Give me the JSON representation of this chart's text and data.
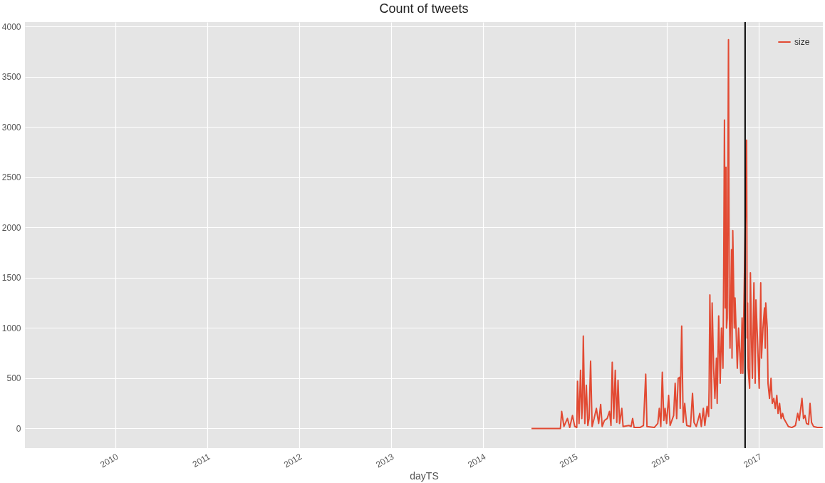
{
  "chart_data": {
    "type": "line",
    "title": "Count of tweets",
    "xlabel": "dayTS",
    "xlim": [
      "2009-01-07",
      "2017-09-13"
    ],
    "xticks": [
      "2010",
      "2011",
      "2012",
      "2013",
      "2014",
      "2015",
      "2016",
      "2017"
    ],
    "ylim": [
      -195,
      4045
    ],
    "yticks": [
      0,
      500,
      1000,
      1500,
      2000,
      2500,
      3000,
      3500,
      4000
    ],
    "grid": true,
    "legend": "top right",
    "ref_lines": [
      {
        "axis": "x",
        "value": "2016-11-08",
        "color": "#000000"
      }
    ],
    "x": [
      "2014-07-13",
      "2014-11-05",
      "2014-11-10",
      "2014-11-19",
      "2014-12-03",
      "2014-12-12",
      "2014-12-23",
      "2015-01-01",
      "2015-01-09",
      "2015-01-12",
      "2015-01-18",
      "2015-01-24",
      "2015-01-29",
      "2015-02-01",
      "2015-02-04",
      "2015-02-10",
      "2015-02-16",
      "2015-02-22",
      "2015-02-27",
      "2015-03-05",
      "2015-03-11",
      "2015-03-19",
      "2015-03-28",
      "2015-04-06",
      "2015-04-14",
      "2015-04-20",
      "2015-04-29",
      "2015-05-10",
      "2015-05-19",
      "2015-05-25",
      "2015-05-30",
      "2015-06-05",
      "2015-06-11",
      "2015-06-17",
      "2015-06-22",
      "2015-06-28",
      "2015-07-07",
      "2015-07-12",
      "2015-08-04",
      "2015-08-13",
      "2015-08-19",
      "2015-08-25",
      "2015-09-17",
      "2015-10-01",
      "2015-10-10",
      "2015-10-15",
      "2015-11-13",
      "2015-11-27",
      "2015-12-03",
      "2015-12-09",
      "2015-12-15",
      "2015-12-21",
      "2015-12-26",
      "2016-01-01",
      "2016-01-09",
      "2016-01-15",
      "2016-01-29",
      "2016-02-04",
      "2016-02-10",
      "2016-02-16",
      "2016-02-22",
      "2016-02-24",
      "2016-03-01",
      "2016-03-07",
      "2016-03-13",
      "2016-03-21",
      "2016-04-05",
      "2016-04-13",
      "2016-04-19",
      "2016-04-28",
      "2016-05-12",
      "2016-05-18",
      "2016-05-26",
      "2016-06-01",
      "2016-06-10",
      "2016-06-16",
      "2016-06-18",
      "2016-06-21",
      "2016-06-27",
      "2016-06-30",
      "2016-07-06",
      "2016-07-11",
      "2016-07-17",
      "2016-07-20",
      "2016-07-26",
      "2016-08-01",
      "2016-08-06",
      "2016-08-12",
      "2016-08-15",
      "2016-08-18",
      "2016-08-21",
      "2016-08-24",
      "2016-08-26",
      "2016-08-29",
      "2016-09-03",
      "2016-09-06",
      "2016-09-09",
      "2016-09-15",
      "2016-09-17",
      "2016-09-20",
      "2016-09-26",
      "2016-09-29",
      "2016-10-08",
      "2016-10-13",
      "2016-10-22",
      "2016-10-27",
      "2016-10-30",
      "2016-11-14",
      "2016-11-16",
      "2016-11-18",
      "2016-11-20",
      "2016-11-26",
      "2016-11-29",
      "2016-12-04",
      "2016-12-07",
      "2016-12-13",
      "2016-12-18",
      "2016-12-21",
      "2016-12-27",
      "2017-01-03",
      "2017-01-09",
      "2017-01-12",
      "2017-01-18",
      "2017-01-24",
      "2017-01-27",
      "2017-01-29",
      "2017-02-04",
      "2017-02-07",
      "2017-02-13",
      "2017-02-19",
      "2017-02-24",
      "2017-03-02",
      "2017-03-08",
      "2017-03-14",
      "2017-03-19",
      "2017-03-25",
      "2017-03-31",
      "2017-04-06",
      "2017-04-11",
      "2017-04-29",
      "2017-05-13",
      "2017-05-27",
      "2017-06-05",
      "2017-06-11",
      "2017-06-17",
      "2017-06-22",
      "2017-06-28",
      "2017-07-04",
      "2017-07-10",
      "2017-07-18",
      "2017-07-24",
      "2017-07-30",
      "2017-08-07",
      "2017-08-22",
      "2017-09-12"
    ],
    "series": [
      {
        "name": "size",
        "color": "#e24a33",
        "values": [
          0,
          0,
          170,
          20,
          100,
          10,
          130,
          20,
          10,
          470,
          50,
          580,
          100,
          280,
          920,
          50,
          430,
          30,
          100,
          670,
          20,
          100,
          200,
          50,
          240,
          20,
          80,
          100,
          170,
          30,
          660,
          100,
          580,
          60,
          480,
          50,
          200,
          20,
          30,
          20,
          100,
          10,
          10,
          30,
          540,
          20,
          10,
          50,
          200,
          20,
          560,
          80,
          200,
          50,
          330,
          30,
          130,
          450,
          100,
          500,
          510,
          200,
          1020,
          60,
          250,
          30,
          20,
          350,
          60,
          20,
          150,
          20,
          200,
          30,
          220,
          120,
          400,
          1330,
          200,
          1250,
          600,
          300,
          700,
          250,
          1120,
          450,
          1000,
          600,
          1600,
          3070,
          1200,
          2600,
          1000,
          1100,
          3870,
          1200,
          800,
          1780,
          700,
          1970,
          1000,
          1300,
          600,
          1000,
          550,
          1100,
          550,
          2870,
          900,
          1250,
          600,
          400,
          1550,
          800,
          500,
          1450,
          450,
          1280,
          900,
          400,
          1450,
          700,
          1000,
          1200,
          800,
          1250,
          1000,
          450,
          300,
          500,
          250,
          300,
          200,
          330,
          150,
          250,
          100,
          150,
          100,
          20,
          10,
          30,
          150,
          80,
          200,
          300,
          100,
          130,
          50,
          40,
          250,
          60,
          20,
          10,
          10
        ]
      }
    ]
  }
}
